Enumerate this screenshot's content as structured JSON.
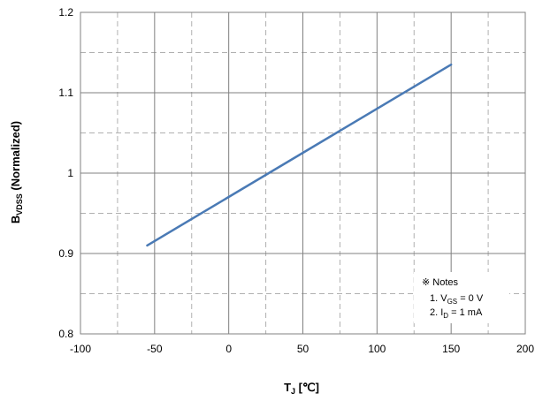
{
  "chart_data": {
    "type": "line",
    "x_axis": {
      "min": -100,
      "max": 200,
      "major_ticks": [
        -100,
        -50,
        0,
        50,
        100,
        150,
        200
      ],
      "tick_labels": [
        "-100",
        "-50",
        "0",
        "50",
        "100",
        "150",
        "200"
      ],
      "title_main": "T",
      "title_sub": "J",
      "title_unit": " [℃]"
    },
    "y_axis": {
      "min": 0.8,
      "max": 1.2,
      "major_ticks": [
        0.8,
        0.9,
        1.0,
        1.1,
        1.2
      ],
      "tick_labels": [
        "0.8",
        "0.9",
        "1",
        "1.1",
        "1.2"
      ],
      "title_main": "B",
      "title_sub": "VDSS",
      "title_rest": " (Normalized)"
    },
    "grid": {
      "major": true,
      "minor_dashed": true
    },
    "series": [
      {
        "color": "#4a7ab5",
        "x": [
          -55,
          150
        ],
        "y": [
          0.91,
          1.135
        ]
      }
    ],
    "notes": {
      "title": "※ Notes",
      "lines": [
        {
          "prefix": "1.  V",
          "sub": "GS",
          "suffix": " = 0 V"
        },
        {
          "prefix": "2.  I",
          "sub": "D",
          "suffix": " = 1 mA"
        }
      ]
    }
  }
}
